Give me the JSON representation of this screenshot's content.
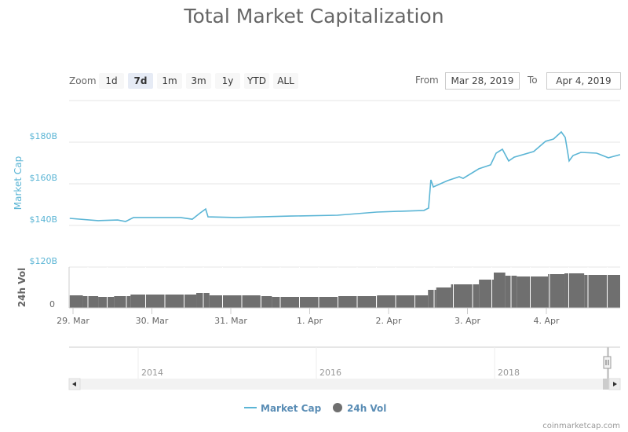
{
  "title": "Total Market Capitalization",
  "range_selector": {
    "zoom_label": "Zoom",
    "buttons": [
      "1d",
      "7d",
      "1m",
      "3m",
      "1y",
      "YTD",
      "ALL"
    ],
    "selected": "7d",
    "from_label": "From",
    "from_value": "Mar 28, 2019",
    "to_label": "To",
    "to_value": "Apr 4, 2019"
  },
  "chart_data": {
    "type": "line",
    "title": "Total Market Capitalization",
    "colors": {
      "market_cap": "#5bb5d5",
      "volume": "#6f6f6f"
    },
    "x_ticks": [
      "29. Mar",
      "30. Mar",
      "31. Mar",
      "1. Apr",
      "2. Apr",
      "3. Apr",
      "4. Apr"
    ],
    "y_axis_market_cap": {
      "label": "Market Cap",
      "ticks": [
        "$120B",
        "$140B",
        "$160B",
        "$180B"
      ],
      "range": [
        120,
        200
      ],
      "unit": "$B"
    },
    "y_axis_volume": {
      "label": "24h Vol",
      "ticks": [
        "0"
      ]
    },
    "grid": true,
    "legend_position": "bottom",
    "series": [
      {
        "name": "Market Cap",
        "type": "line",
        "points": [
          [
            "2019-03-28T23:00",
            143.4
          ],
          [
            "2019-03-29T07:40",
            142.3
          ],
          [
            "2019-03-29T13:36",
            142.6
          ],
          [
            "2019-03-29T16:00",
            141.9
          ],
          [
            "2019-03-29T18:24",
            143.8
          ],
          [
            "2019-03-30T08:43",
            143.8
          ],
          [
            "2019-03-30T12:17",
            143.0
          ],
          [
            "2019-03-30T14:41",
            146.0
          ],
          [
            "2019-03-30T16:22",
            147.9
          ],
          [
            "2019-03-30T17:04",
            144.1
          ],
          [
            "2019-03-31T01:26",
            143.8
          ],
          [
            "2019-03-31T18:09",
            144.5
          ],
          [
            "2019-04-01T08:28",
            144.9
          ],
          [
            "2019-04-01T20:25",
            146.4
          ],
          [
            "2019-04-02T10:45",
            147.2
          ],
          [
            "2019-04-02T12:10",
            148.3
          ],
          [
            "2019-04-02T12:53",
            161.9
          ],
          [
            "2019-04-02T13:37",
            158.5
          ],
          [
            "2019-04-02T17:54",
            161.5
          ],
          [
            "2019-04-02T21:30",
            163.4
          ],
          [
            "2019-04-02T22:41",
            162.6
          ],
          [
            "2019-04-03T03:28",
            167.2
          ],
          [
            "2019-04-03T07:03",
            169.1
          ],
          [
            "2019-04-03T08:43",
            174.7
          ],
          [
            "2019-04-03T10:38",
            176.6
          ],
          [
            "2019-04-03T12:32",
            171.0
          ],
          [
            "2019-04-03T14:12",
            172.8
          ],
          [
            "2019-04-03T20:10",
            175.5
          ],
          [
            "2019-04-03T23:46",
            180.4
          ],
          [
            "2019-04-04T02:10",
            181.5
          ],
          [
            "2019-04-04T04:32",
            184.9
          ],
          [
            "2019-04-04T05:44",
            182.3
          ],
          [
            "2019-04-04T06:56",
            171.0
          ],
          [
            "2019-04-04T08:07",
            173.6
          ],
          [
            "2019-04-04T10:31",
            175.1
          ],
          [
            "2019-04-04T15:17",
            174.7
          ],
          [
            "2019-04-04T18:52",
            172.5
          ],
          [
            "2019-04-04T22:26",
            174.0
          ]
        ]
      },
      {
        "name": "24h Vol",
        "type": "column",
        "points": [
          [
            "2019-03-28T23:00",
            32
          ],
          [
            "2019-03-29T03:00",
            30
          ],
          [
            "2019-03-29T07:40",
            28
          ],
          [
            "2019-03-29T12:30",
            30
          ],
          [
            "2019-03-29T17:30",
            34
          ],
          [
            "2019-03-30T13:30",
            38
          ],
          [
            "2019-03-30T17:30",
            32
          ],
          [
            "2019-03-31T09:00",
            30
          ],
          [
            "2019-03-31T12:30",
            28
          ],
          [
            "2019-04-01T08:30",
            30
          ],
          [
            "2019-04-01T20:30",
            32
          ],
          [
            "2019-04-02T12:00",
            46
          ],
          [
            "2019-04-02T14:30",
            52
          ],
          [
            "2019-04-02T19:00",
            60
          ],
          [
            "2019-04-03T03:30",
            72
          ],
          [
            "2019-04-03T08:00",
            90
          ],
          [
            "2019-04-03T11:30",
            82
          ],
          [
            "2019-04-03T15:00",
            80
          ],
          [
            "2019-04-04T00:30",
            86
          ],
          [
            "2019-04-04T05:30",
            88
          ],
          [
            "2019-04-04T11:30",
            84
          ]
        ]
      }
    ]
  },
  "navigator": {
    "years": [
      "2014",
      "2016",
      "2018"
    ]
  },
  "legend": [
    {
      "label": "Market Cap"
    },
    {
      "label": "24h Vol"
    }
  ],
  "credit": "coinmarketcap.com"
}
